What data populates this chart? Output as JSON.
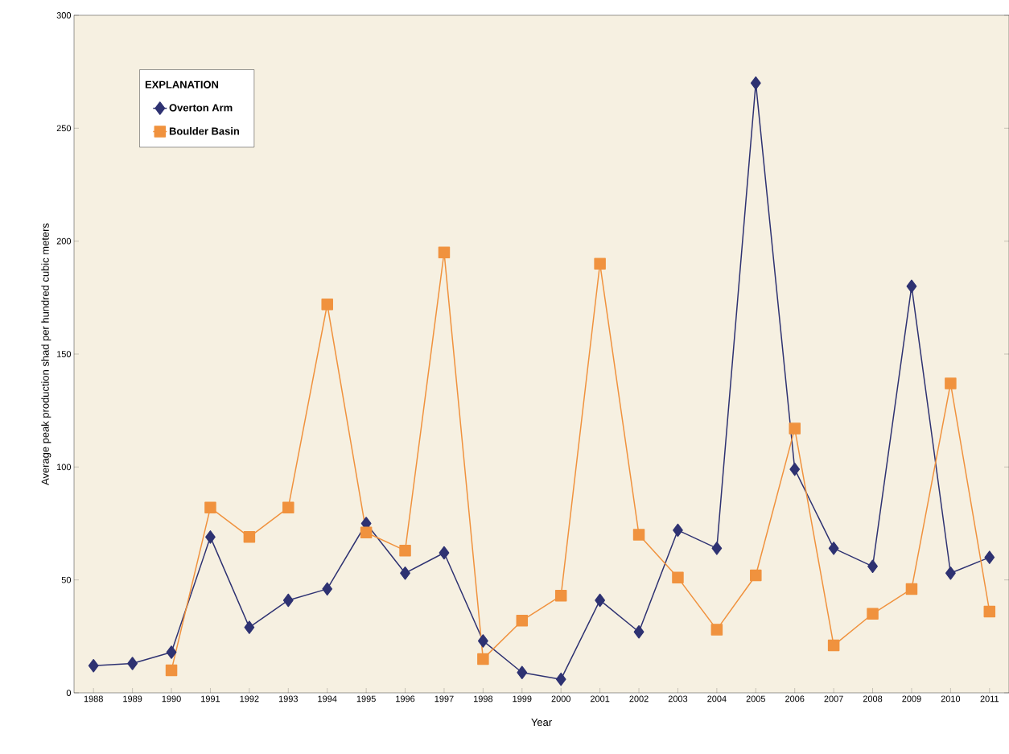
{
  "chart_data": {
    "type": "line",
    "xlabel": "Year",
    "ylabel": "Average peak production shad per hundred cubic meters",
    "legend_title": "EXPLANATION",
    "legend": "top left",
    "categories": [
      "1988",
      "1989",
      "1990",
      "1991",
      "1992",
      "1993",
      "1994",
      "1995",
      "1996",
      "1997",
      "1998",
      "1999",
      "2000",
      "2001",
      "2002",
      "2003",
      "2004",
      "2005",
      "2006",
      "2007",
      "2008",
      "2009",
      "2010",
      "2011"
    ],
    "ylim": [
      0,
      300
    ],
    "yticks": [
      0,
      50,
      100,
      150,
      200,
      250,
      300
    ],
    "series": [
      {
        "name": "Overton Arm",
        "color": "#2e3272",
        "marker": "diamond",
        "values": [
          12,
          13,
          18,
          69,
          29,
          41,
          46,
          75,
          53,
          62,
          23,
          9,
          6,
          41,
          27,
          72,
          64,
          270,
          99,
          64,
          56,
          180,
          53,
          60
        ]
      },
      {
        "name": "Boulder Basin",
        "color": "#f0923e",
        "marker": "square",
        "values": [
          null,
          null,
          10,
          82,
          69,
          82,
          172,
          71,
          63,
          195,
          15,
          32,
          43,
          190,
          70,
          51,
          28,
          52,
          117,
          21,
          35,
          46,
          137,
          36
        ]
      }
    ]
  }
}
